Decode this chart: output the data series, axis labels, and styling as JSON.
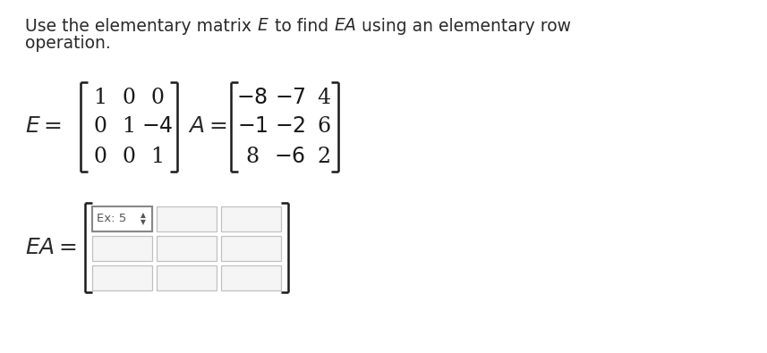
{
  "bg_color": "#ffffff",
  "text_color": "#2a2a2a",
  "matrix_color": "#1a1a1a",
  "E_matrix": [
    [
      1,
      0,
      0
    ],
    [
      0,
      1,
      -4
    ],
    [
      0,
      0,
      1
    ]
  ],
  "A_matrix": [
    [
      -8,
      -7,
      4
    ],
    [
      -1,
      -2,
      6
    ],
    [
      8,
      -6,
      2
    ]
  ],
  "fs_instr": 13.5,
  "fs_mat": 17,
  "fs_label": 17,
  "bracket_lw": 1.8,
  "cell_border_color": "#c0c0c0",
  "cell_fill": "#f5f5f5",
  "placeholder_color": "#555555"
}
